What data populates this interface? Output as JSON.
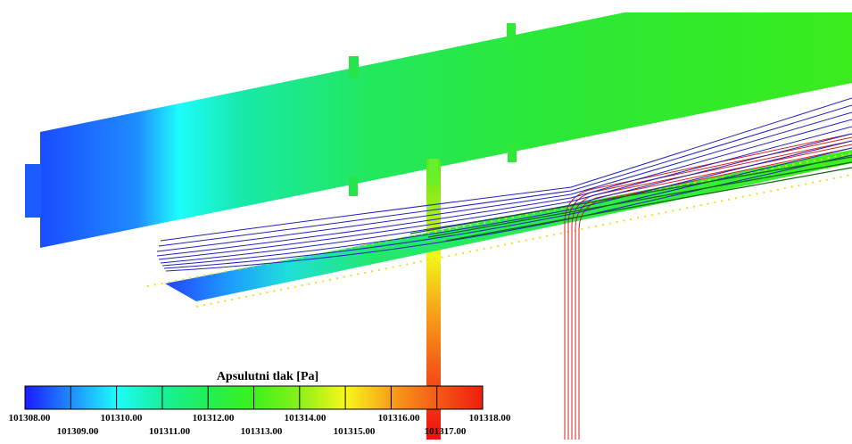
{
  "legend": {
    "title": "Apsulutni tlak [Pa]",
    "upper_ticks": [
      "101308.00",
      "101310.00",
      "101312.00",
      "101314.00",
      "101316.00",
      "101318.00"
    ],
    "lower_ticks": [
      "101309.00",
      "101311.00",
      "101313.00",
      "101315.00",
      "101317.00"
    ],
    "range": [
      101308,
      101318
    ],
    "colors": [
      "#1a1aff",
      "#1f8cff",
      "#1cfcfc",
      "#18f09a",
      "#22ee55",
      "#3cf21a",
      "#8af01a",
      "#f8f81a",
      "#f7a019",
      "#f55a17",
      "#f01d0d"
    ]
  },
  "scene": {
    "streamline_colors": {
      "inflow": "#2222bb",
      "duct": "#d42020",
      "plate": "#116611"
    },
    "edge_marker_color": "#e8e020"
  }
}
